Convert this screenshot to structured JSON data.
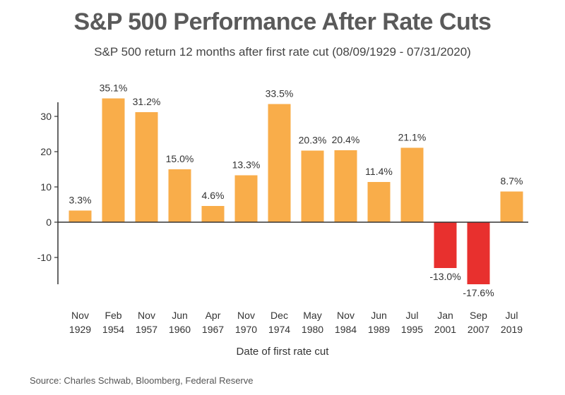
{
  "chart_data": {
    "type": "bar",
    "title": "S&P 500 Performance After Rate Cuts",
    "subtitle": "S&P 500 return 12 months after first rate cut (08/09/1929 - 07/31/2020)",
    "xlabel": "Date of first rate cut",
    "ylabel": "",
    "source": "Source: Charles Schwab, Bloomberg, Federal Reserve",
    "ylim": [
      -18,
      38
    ],
    "yticks": [
      -10,
      0,
      10,
      20,
      30
    ],
    "ytick_labels": [
      "-10",
      "0",
      "10",
      "20",
      "30"
    ],
    "grid": false,
    "categories": [
      [
        "Nov",
        "1929"
      ],
      [
        "Feb",
        "1954"
      ],
      [
        "Nov",
        "1957"
      ],
      [
        "Jun",
        "1960"
      ],
      [
        "Apr",
        "1967"
      ],
      [
        "Nov",
        "1970"
      ],
      [
        "Dec",
        "1974"
      ],
      [
        "May",
        "1980"
      ],
      [
        "Nov",
        "1984"
      ],
      [
        "Jun",
        "1989"
      ],
      [
        "Jul",
        "1995"
      ],
      [
        "Jan",
        "2001"
      ],
      [
        "Sep",
        "2007"
      ],
      [
        "Jul",
        "2019"
      ]
    ],
    "values": [
      3.3,
      35.1,
      31.2,
      15.0,
      4.6,
      13.3,
      33.5,
      20.3,
      20.4,
      11.4,
      21.1,
      -13.0,
      -17.6,
      8.7
    ],
    "value_labels": [
      "3.3%",
      "35.1%",
      "31.2%",
      "15.0%",
      "4.6%",
      "13.3%",
      "33.5%",
      "20.3%",
      "20.4%",
      "11.4%",
      "21.1%",
      "-13.0%",
      "-17.6%",
      "8.7%"
    ],
    "colors": {
      "positive": "#f9ad4a",
      "negative": "#e8302e",
      "axis": "#333333"
    }
  }
}
